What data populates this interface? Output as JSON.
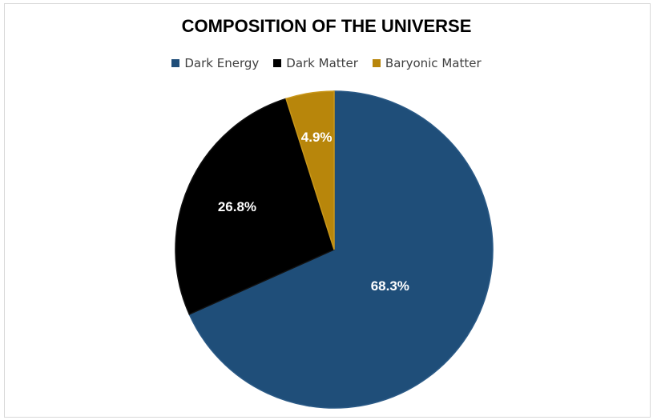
{
  "chart_data": {
    "type": "pie",
    "title": "COMPOSITION OF THE UNIVERSE",
    "legend_placement": "top",
    "categories": [
      "Dark Energy",
      "Dark Matter",
      "Baryonic Matter"
    ],
    "values": [
      68.3,
      26.8,
      4.9
    ],
    "data_labels": [
      "68.3%",
      "26.8%",
      "4.9%"
    ],
    "colors": [
      "#1f4e79",
      "#000000",
      "#b8860b"
    ]
  }
}
